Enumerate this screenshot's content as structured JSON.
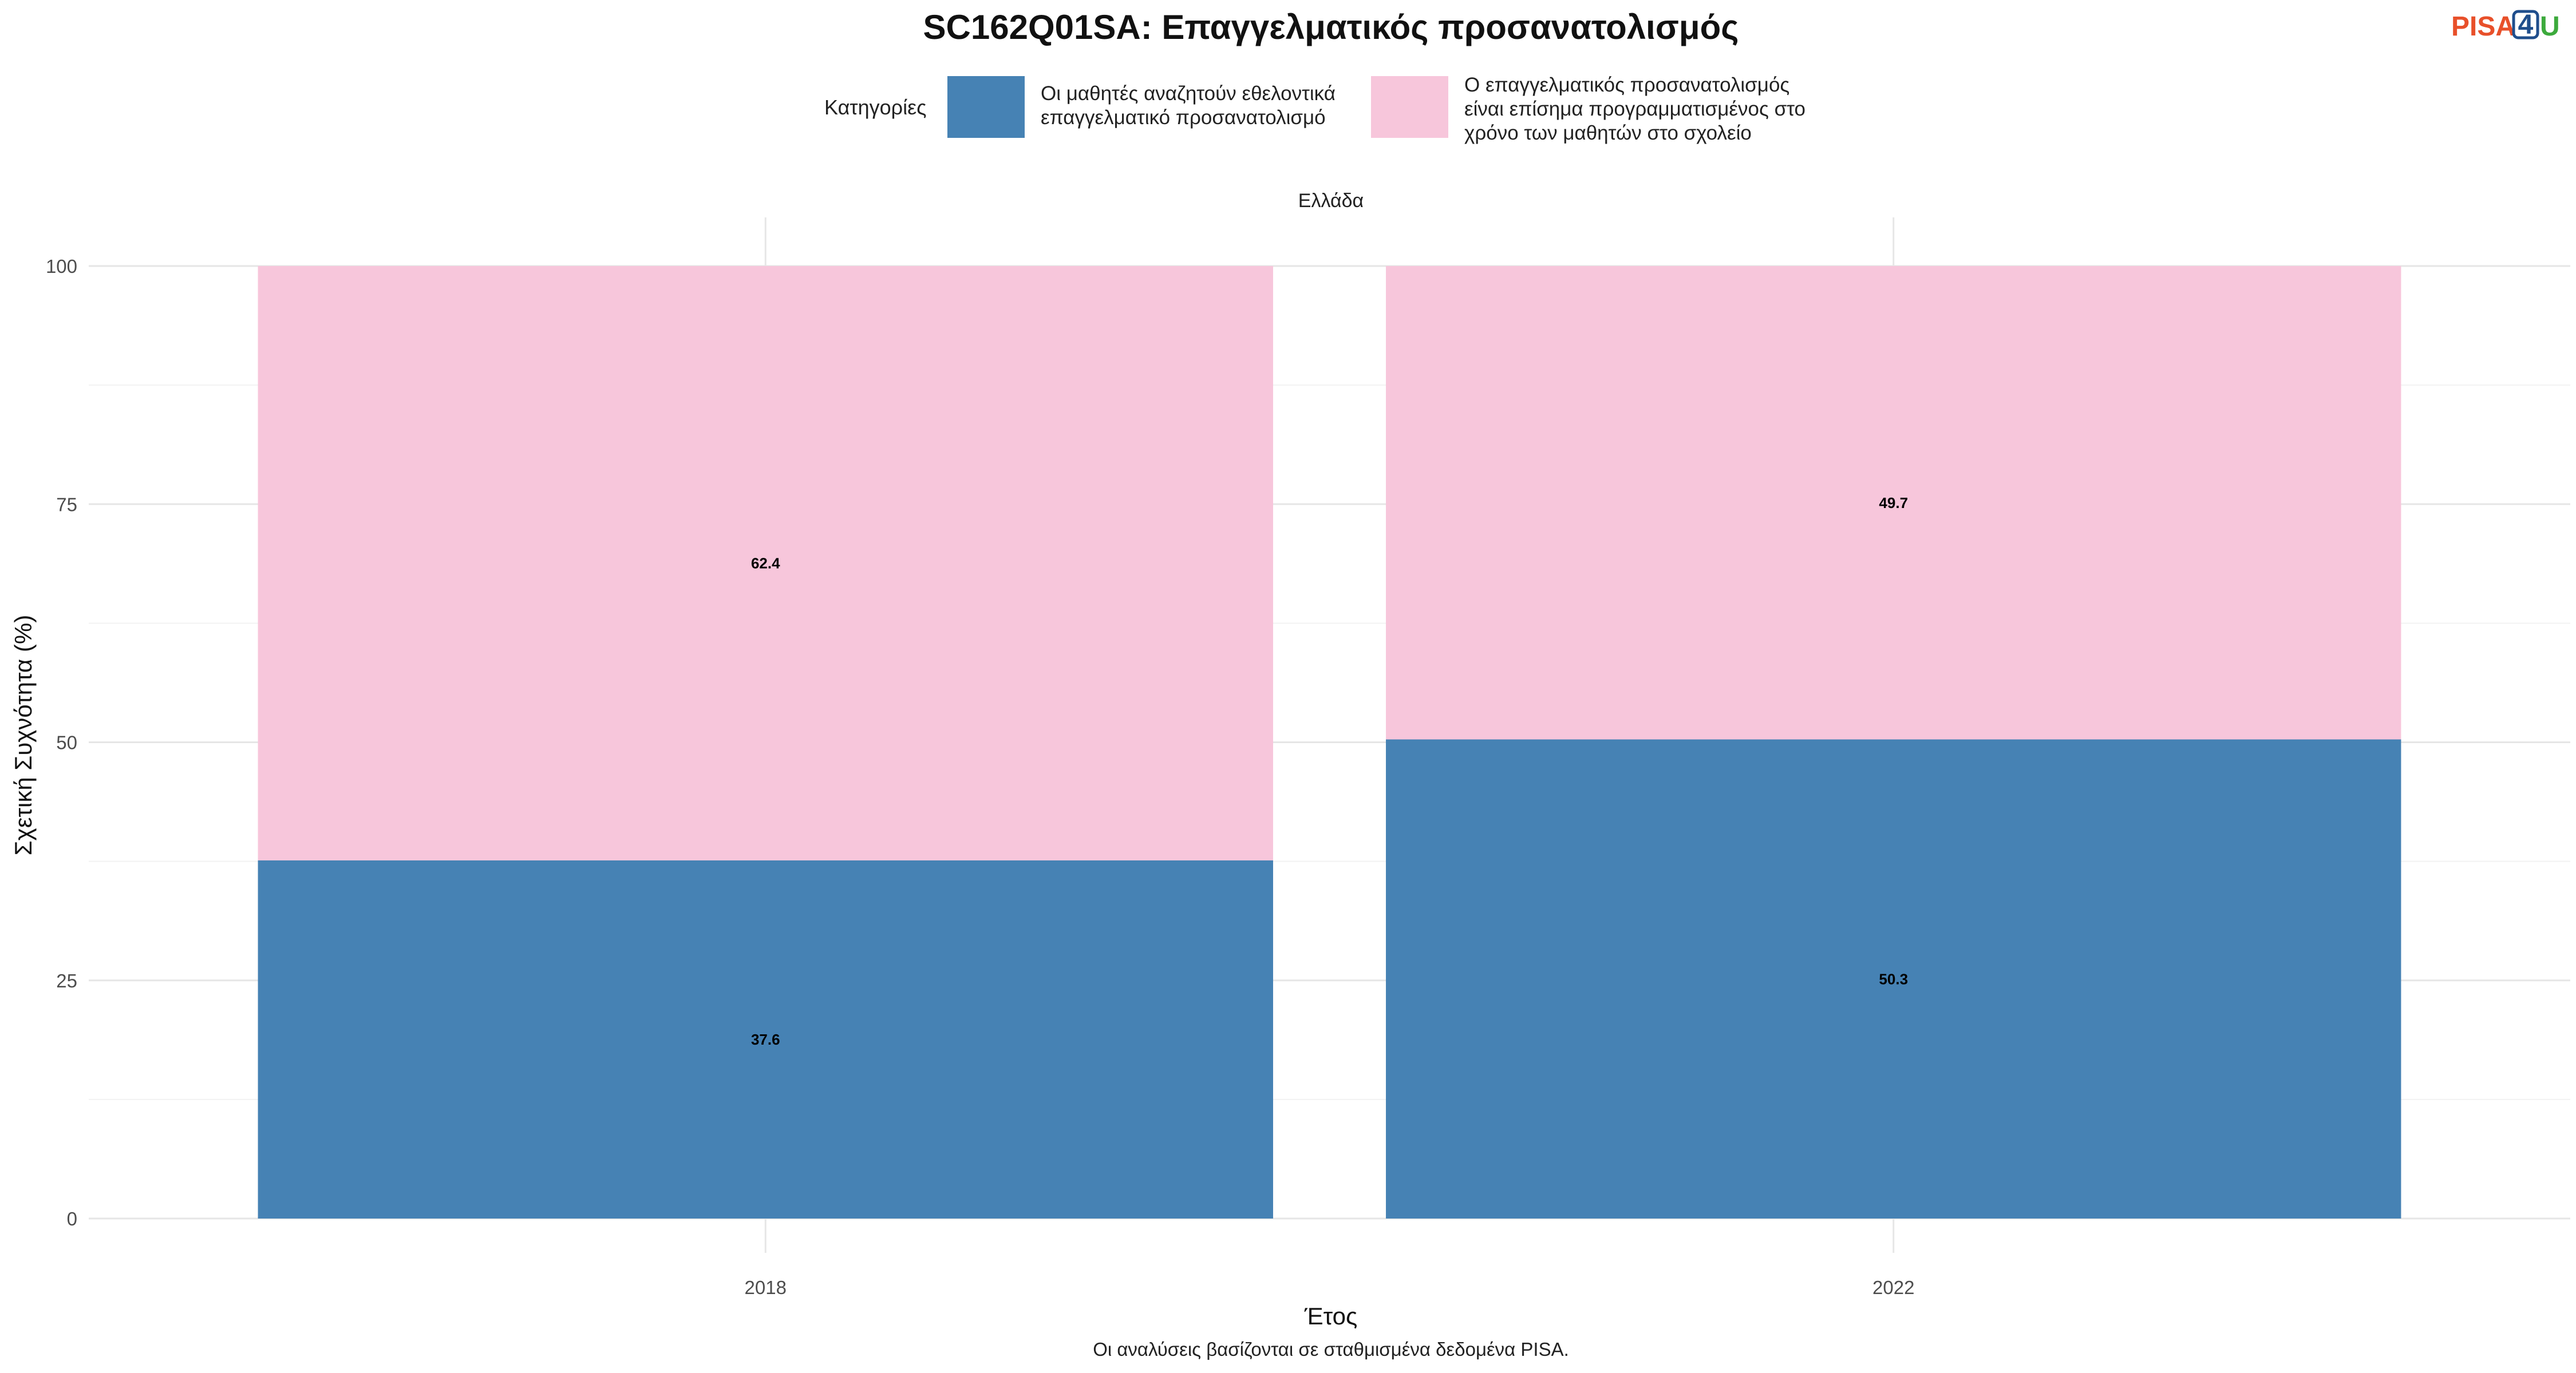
{
  "chart_data": {
    "type": "bar",
    "stacked": true,
    "title": "SC162Q01SA: Επαγγελματικός προσανατολισμός",
    "facet": "Ελλάδα",
    "xlabel": "Έτος",
    "ylabel": "Σχετική Συχνότητα (%)",
    "categories": [
      "2018",
      "2022"
    ],
    "ylim": [
      0,
      100
    ],
    "yticks": [
      0,
      25,
      50,
      75,
      100
    ],
    "legend": {
      "title": "Κατηγορίες",
      "placement": "top"
    },
    "series": [
      {
        "name": "Οι μαθητές αναζητούν εθελοντικά επαγγελματικό προσανατολισμό",
        "name_lines": [
          "Οι μαθητές αναζητούν εθελοντικά",
          "επαγγελματικό προσανατολισμό"
        ],
        "color": "#4682B4",
        "values": [
          37.6,
          50.3
        ],
        "labels": [
          "37.6",
          "50.3"
        ]
      },
      {
        "name": "Ο επαγγελματικός προσανατολισμός είναι επίσημα προγραμματισμένος στο χρόνο των μαθητών στο σχολείο",
        "name_lines": [
          "Ο επαγγελματικός προσανατολισμός",
          "είναι επίσημα προγραμματισμένος στο",
          "χρόνο των μαθητών στο σχολείο"
        ],
        "color": "#F7C6DB",
        "values": [
          62.4,
          49.7
        ],
        "labels": [
          "62.4",
          "49.7"
        ]
      }
    ],
    "grid": true,
    "caption": "Οι αναλύσεις βασίζονται σε σταθμισμένα δεδομένα PISA."
  },
  "logo": {
    "parts": [
      "PISA",
      "4",
      "U"
    ],
    "colors": [
      "#E8502A",
      "#1F4E8C",
      "#3CAA3C"
    ]
  }
}
